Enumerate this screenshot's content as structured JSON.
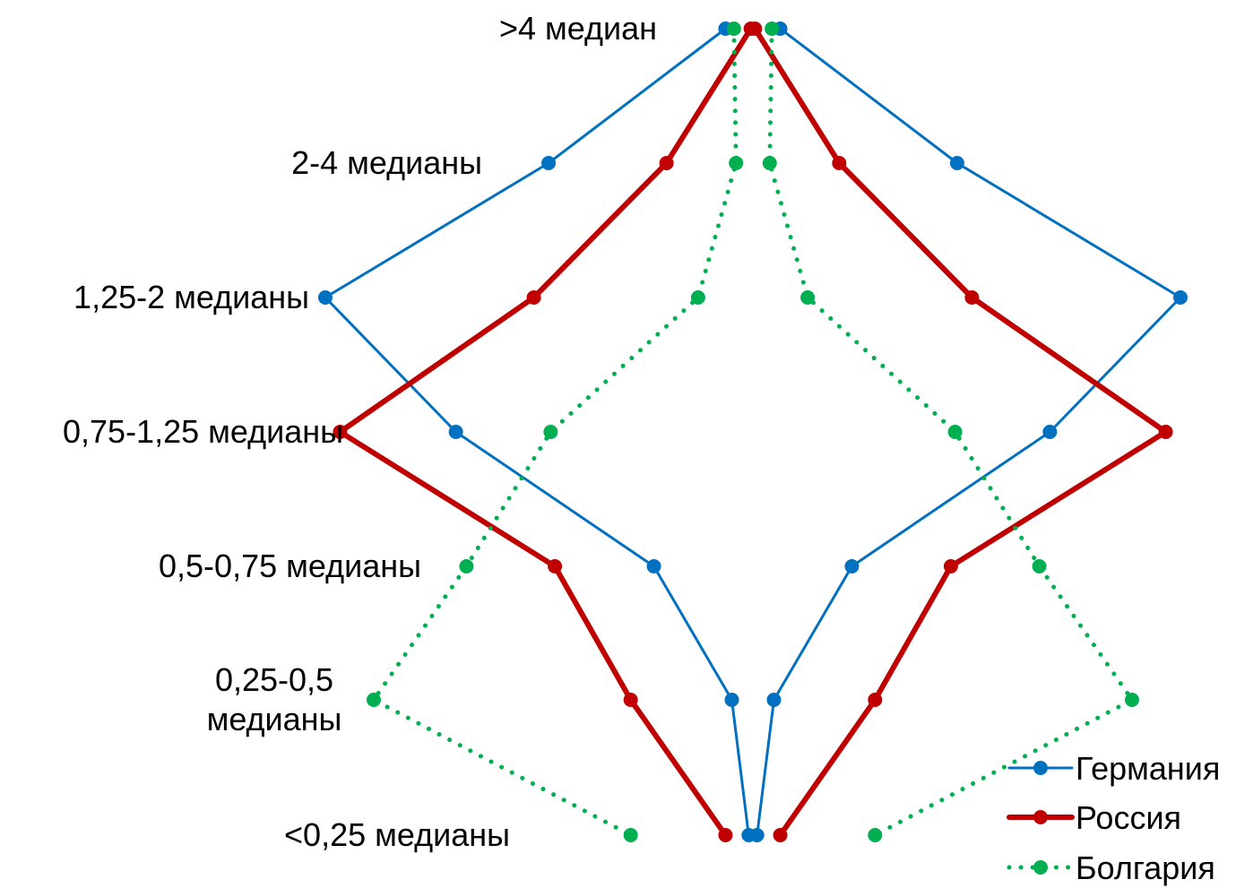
{
  "chart_data": {
    "type": "line",
    "title": "",
    "orientation": "symmetric-distribution",
    "categories": [
      ">4 медиан",
      "2-4 медианы",
      "1,25-2 медианы",
      "0,75-1,25 медианы",
      "0,5-0,75 медианы",
      "0,25-0,5 медианы",
      "<0,25 медианы"
    ],
    "category_lines": [
      [
        ">4 медиан"
      ],
      [
        "2-4 медианы"
      ],
      [
        "1,25-2 медианы"
      ],
      [
        "0,75-1,25 медианы"
      ],
      [
        "0,5-0,75 медианы"
      ],
      [
        "0,25-0,5",
        "медианы"
      ],
      [
        "<0,25 медианы"
      ]
    ],
    "value_max": 20,
    "legend_position": "bottom-right",
    "series": [
      {
        "name": "Германия",
        "color": "#0070C0",
        "style": "solid",
        "stroke_width": 3,
        "values": [
          1.3,
          9.7,
          20.3,
          14.1,
          4.7,
          1.0,
          0.2
        ]
      },
      {
        "name": "Россия",
        "color": "#C00000",
        "style": "solid",
        "stroke_width": 6,
        "values": [
          0.1,
          4.1,
          10.4,
          19.6,
          9.4,
          5.8,
          1.3
        ]
      },
      {
        "name": "Болгария",
        "color": "#00B050",
        "style": "dotted",
        "stroke_width": 5,
        "values": [
          0.9,
          0.8,
          2.6,
          9.6,
          13.6,
          18.0,
          5.8
        ]
      }
    ]
  }
}
